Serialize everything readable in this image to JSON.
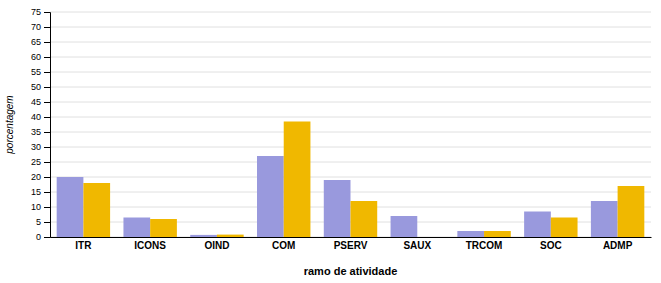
{
  "chart_data": {
    "type": "bar",
    "categories": [
      "ITR",
      "ICONS",
      "OIND",
      "COM",
      "PSERV",
      "SAUX",
      "TRCOM",
      "SOC",
      "ADMP"
    ],
    "series": [
      {
        "color": "#9999dd",
        "values": [
          20,
          6.5,
          0.7,
          27,
          19,
          7,
          2,
          8.5,
          12
        ]
      },
      {
        "color": "#f0b800",
        "values": [
          18,
          6,
          0.8,
          38.5,
          12,
          0,
          2,
          6.5,
          17
        ]
      }
    ],
    "xlabel": "ramo de atividade",
    "ylabel": "porcentagem",
    "ylim": [
      0,
      75
    ],
    "yticks": [
      0,
      5,
      10,
      15,
      20,
      25,
      30,
      35,
      40,
      45,
      50,
      55,
      60,
      65,
      70,
      75
    ],
    "grid": true
  }
}
